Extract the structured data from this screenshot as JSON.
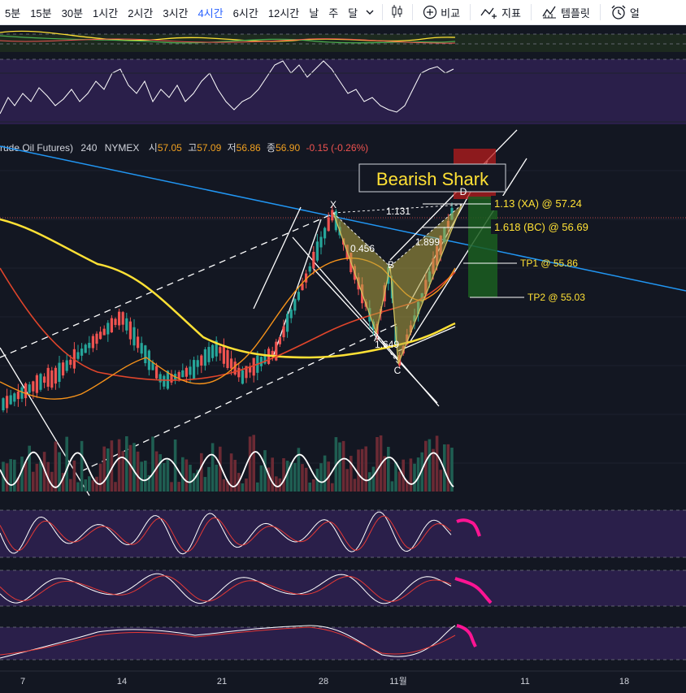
{
  "toolbar": {
    "timeframes": [
      {
        "label": "5분",
        "active": false
      },
      {
        "label": "15분",
        "active": false
      },
      {
        "label": "30분",
        "active": false
      },
      {
        "label": "1시간",
        "active": false
      },
      {
        "label": "2시간",
        "active": false
      },
      {
        "label": "3시간",
        "active": false
      },
      {
        "label": "4시간",
        "active": true
      },
      {
        "label": "6시간",
        "active": false
      },
      {
        "label": "12시간",
        "active": false
      },
      {
        "label": "날",
        "active": false
      },
      {
        "label": "주",
        "active": false
      },
      {
        "label": "달",
        "active": false
      }
    ],
    "compare_label": "비교",
    "indicators_label": "지표",
    "templates_label": "템플릿",
    "alert_label": "얼"
  },
  "legend": {
    "symbol": "rude Oil Futures)",
    "interval": "240",
    "exchange": "NYMEX",
    "open_label": "시",
    "open": "57.05",
    "high_label": "고",
    "high": "57.09",
    "low_label": "저",
    "low": "56.86",
    "close_label": "종",
    "close": "56.90",
    "change": "-0.15 (-0.26%)"
  },
  "pattern": {
    "title": "Bearish Shark",
    "points": {
      "X": "X",
      "A": "A",
      "B": "B",
      "C": "C",
      "D": "D"
    },
    "ratios": {
      "xb": "0.456",
      "ac": "1.649",
      "bd": "1.899",
      "xd": "1.131"
    },
    "levels": {
      "xa": "1.13 (XA) @ 57.24",
      "bc": "1.618 (BC) @ 56.69",
      "tp1": "TP1 @ 55.86",
      "tp2": "TP2 @ 55.03"
    }
  },
  "x_axis": [
    "7",
    "14",
    "21",
    "28",
    "11월",
    "11",
    "18"
  ],
  "colors": {
    "background": "#131722",
    "up": "#26a69a",
    "down": "#ef5350",
    "ma_yellow": "#ffe135",
    "ma_orange": "#f7931a",
    "ma_red": "#e0452b",
    "trend_blue": "#2196f3",
    "pane_purple": "#2a1f4a",
    "stoch_k": "#ffffff",
    "stoch_d": "#e53935",
    "forecast_pink": "#ff1493",
    "active_tab": "#2962ff"
  }
}
